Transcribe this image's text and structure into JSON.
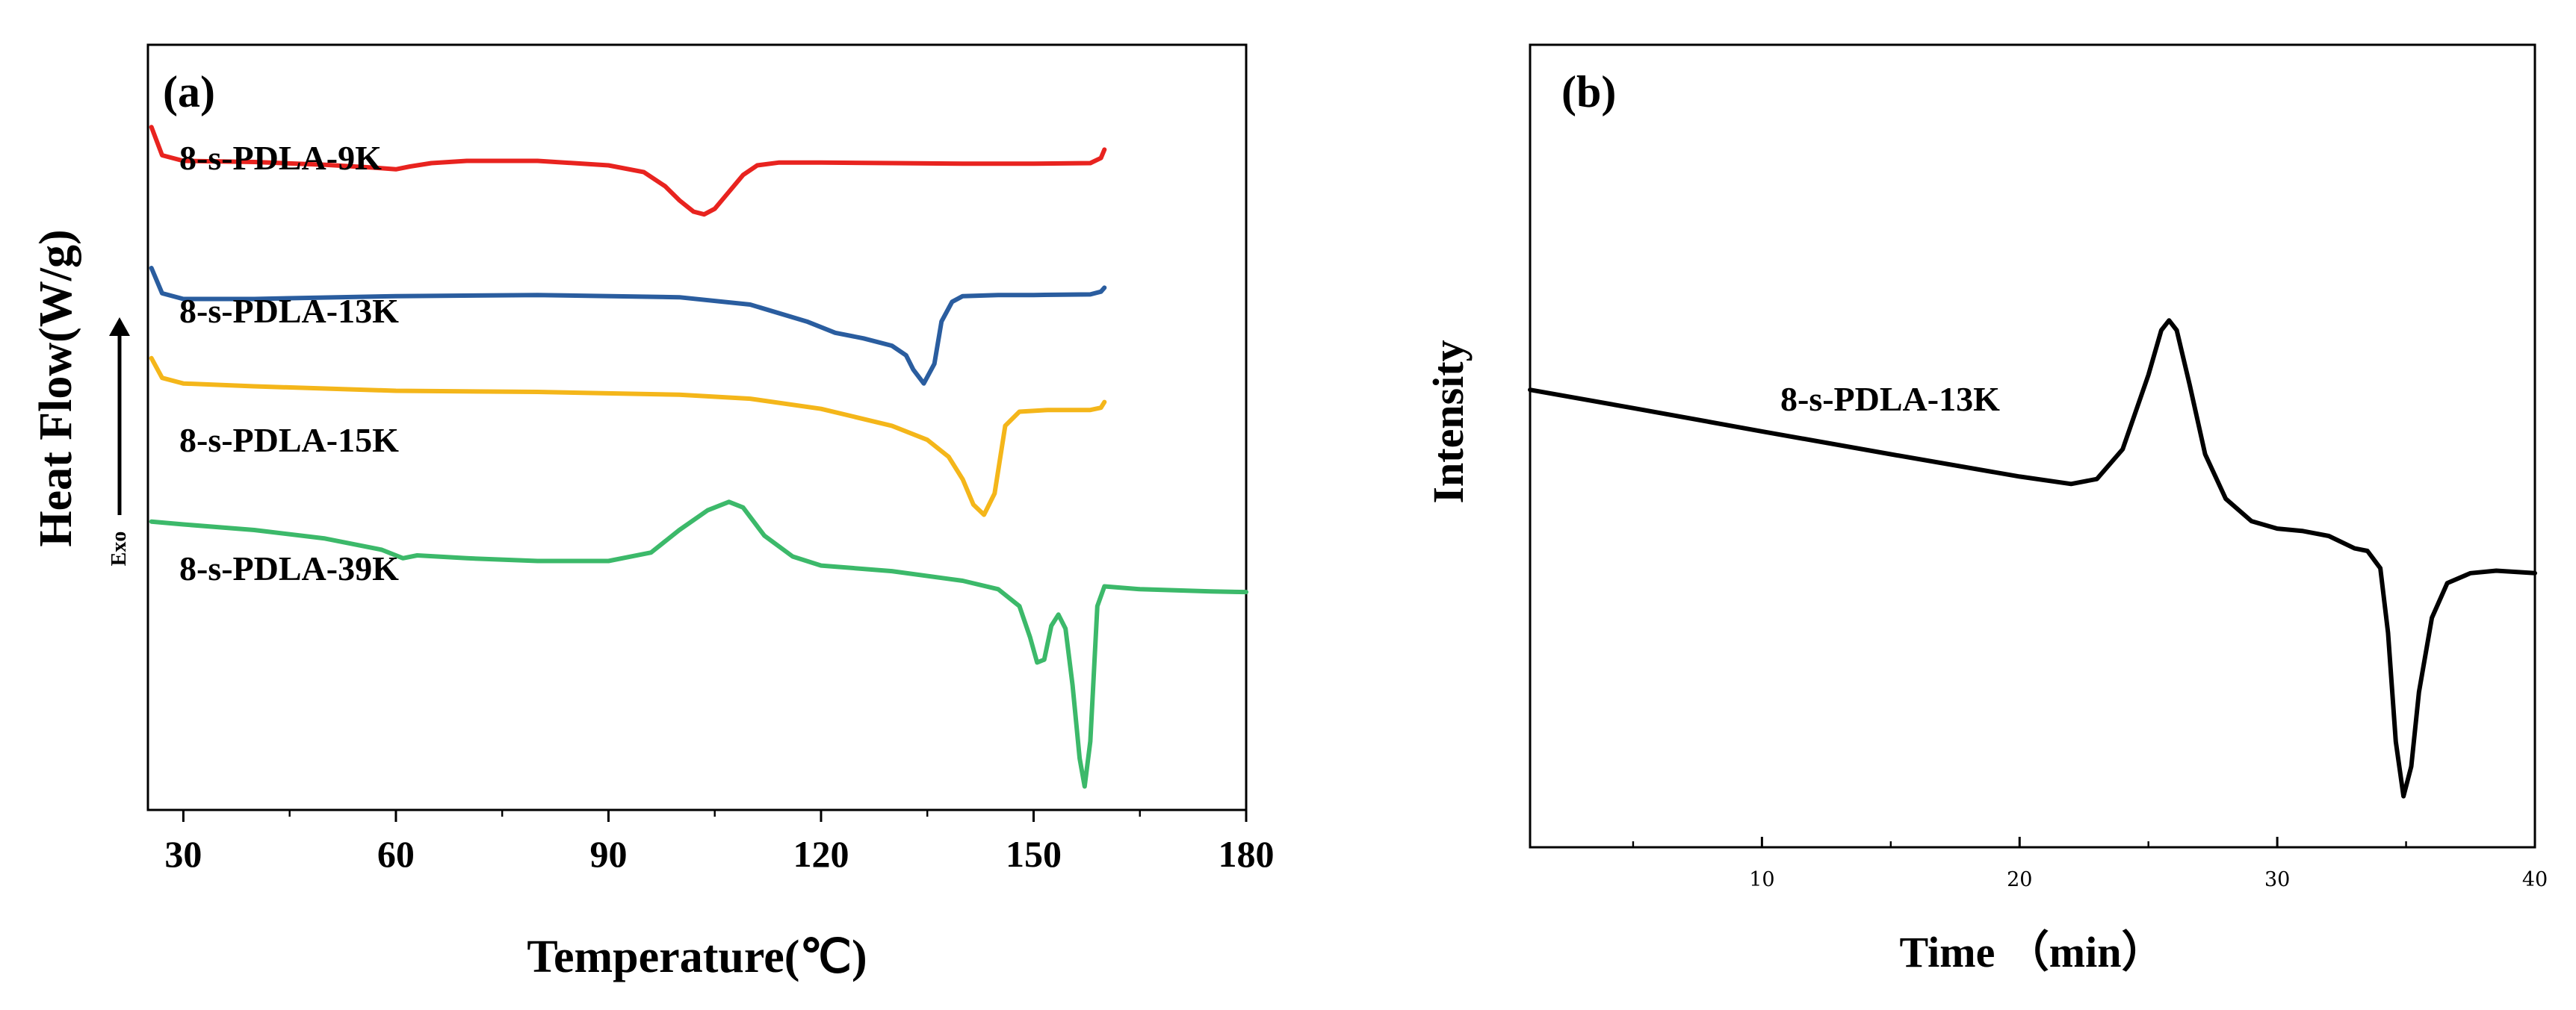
{
  "chart_data": [
    {
      "panel": "(a)",
      "type": "line",
      "xlabel": "Temperature(℃)",
      "ylabel": "Heat Flow(W/g)",
      "exo_label": "Exo",
      "xlim": [
        25,
        180
      ],
      "xticks": [
        30,
        60,
        90,
        120,
        150,
        180
      ],
      "grid": false,
      "series": [
        {
          "name": "8-s-PDLA-9K",
          "color": "#e8231f",
          "x": [
            25.5,
            27,
            30,
            40,
            50,
            57,
            60,
            62,
            65,
            70,
            80,
            90,
            95,
            98,
            100,
            102,
            103.5,
            105,
            107,
            109,
            111,
            114,
            120,
            130,
            140,
            150,
            158,
            159.5,
            160
          ],
          "y": [
            9.6,
            9.1,
            9.0,
            8.98,
            8.93,
            8.88,
            8.85,
            8.9,
            8.96,
            9.0,
            9.0,
            8.92,
            8.8,
            8.55,
            8.3,
            8.1,
            8.05,
            8.15,
            8.45,
            8.75,
            8.92,
            8.97,
            8.97,
            8.96,
            8.95,
            8.95,
            8.96,
            9.05,
            9.2
          ]
        },
        {
          "name": "8-s-PDLA-13K",
          "color": "#2a5d9f",
          "x": [
            25.5,
            27,
            30,
            40,
            60,
            80,
            100,
            110,
            118,
            122,
            126,
            130,
            132,
            133,
            134.5,
            136,
            137,
            138.5,
            140,
            145,
            150,
            158,
            159.5,
            160
          ],
          "y": [
            7.1,
            6.65,
            6.55,
            6.55,
            6.6,
            6.62,
            6.58,
            6.45,
            6.15,
            5.95,
            5.85,
            5.72,
            5.55,
            5.3,
            5.05,
            5.4,
            6.15,
            6.5,
            6.6,
            6.62,
            6.62,
            6.63,
            6.68,
            6.75
          ]
        },
        {
          "name": "8-s-PDLA-15K",
          "color": "#f4b61a",
          "x": [
            25.5,
            27,
            30,
            40,
            60,
            80,
            100,
            110,
            120,
            130,
            135,
            138,
            140,
            141.5,
            143,
            144.5,
            146,
            148,
            152,
            158,
            159.5,
            160
          ],
          "y": [
            5.5,
            5.15,
            5.05,
            5.0,
            4.92,
            4.9,
            4.85,
            4.78,
            4.6,
            4.3,
            4.05,
            3.75,
            3.35,
            2.9,
            2.72,
            3.1,
            4.3,
            4.55,
            4.58,
            4.58,
            4.62,
            4.72
          ]
        },
        {
          "name": "8-s-PDLA-39K",
          "color": "#3cb96a",
          "x": [
            25.5,
            30,
            40,
            50,
            58,
            61,
            63,
            70,
            80,
            90,
            96,
            100,
            104,
            107,
            109,
            112,
            116,
            120,
            130,
            140,
            145,
            148,
            149.5,
            150.5,
            151.5,
            152.5,
            153.5,
            154.5,
            155.5,
            156.5,
            157.2,
            158,
            159,
            160,
            165,
            170,
            175,
            180
          ],
          "y": [
            2.6,
            2.55,
            2.45,
            2.3,
            2.1,
            1.95,
            2.0,
            1.95,
            1.9,
            1.9,
            2.05,
            2.45,
            2.8,
            2.95,
            2.85,
            2.35,
            1.98,
            1.82,
            1.72,
            1.55,
            1.4,
            1.1,
            0.55,
            0.1,
            0.15,
            0.75,
            0.95,
            0.7,
            -0.3,
            -1.6,
            -2.1,
            -1.3,
            1.1,
            1.45,
            1.4,
            1.38,
            1.36,
            1.35
          ]
        }
      ]
    },
    {
      "panel": "(b)",
      "type": "line",
      "xlabel": "Time （min）",
      "ylabel": "Intensity",
      "xlim": [
        1,
        40
      ],
      "xticks": [
        10,
        20,
        30,
        40
      ],
      "grid": false,
      "series": [
        {
          "name": "8-s-PDLA-13K",
          "color": "#000000",
          "x": [
            1,
            5,
            10,
            15,
            20,
            22,
            23,
            24,
            25,
            25.5,
            25.8,
            26.1,
            26.6,
            27.2,
            28,
            29,
            30,
            31,
            32,
            33,
            33.5,
            34,
            34.3,
            34.6,
            34.9,
            35.2,
            35.5,
            36,
            36.6,
            37.5,
            38.5,
            40
          ],
          "y": [
            8.1,
            7.73,
            7.26,
            6.8,
            6.35,
            6.2,
            6.3,
            6.9,
            8.4,
            9.3,
            9.5,
            9.3,
            8.2,
            6.8,
            5.9,
            5.45,
            5.3,
            5.25,
            5.15,
            4.9,
            4.85,
            4.5,
            3.2,
            1.0,
            -0.1,
            0.5,
            2.0,
            3.5,
            4.2,
            4.4,
            4.45,
            4.4
          ]
        }
      ]
    }
  ]
}
